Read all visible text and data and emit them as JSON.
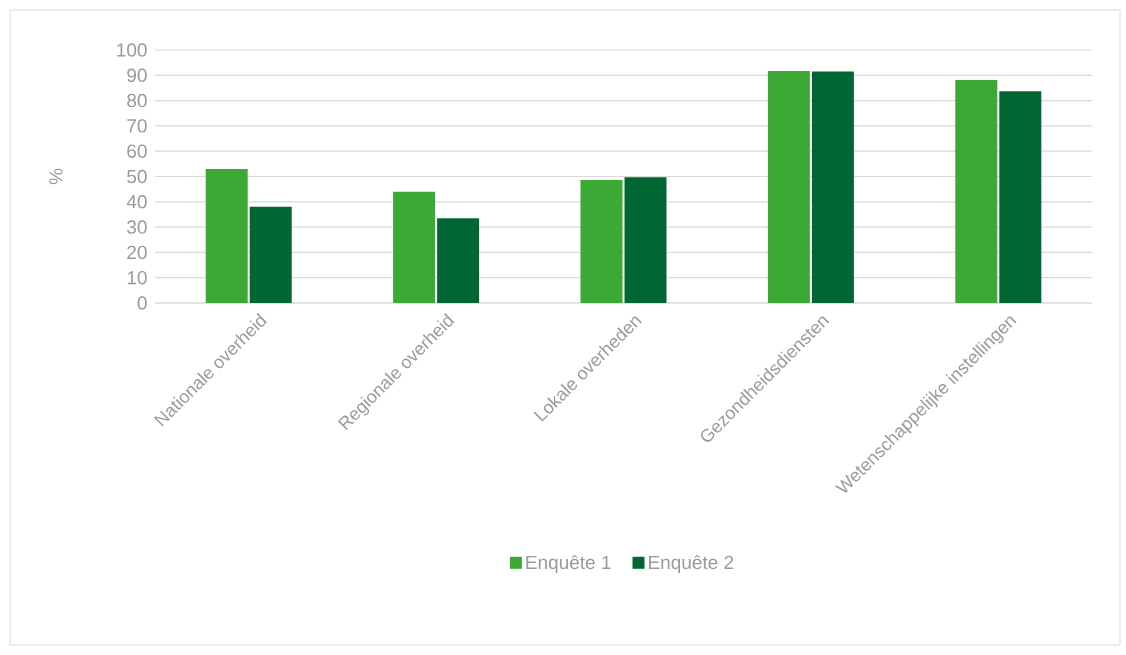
{
  "chart_data": {
    "type": "bar",
    "ylabel": "%",
    "categories": [
      "Nationale overheid",
      "Regionale overheid",
      "Lokale overheden",
      "Gezondheidsdiensten",
      "Wetenschappelijke instellingen"
    ],
    "series": [
      {
        "name": "Enquête 1",
        "color": "#3da935",
        "values": [
          53,
          44,
          48.6,
          91.7,
          88.1
        ]
      },
      {
        "name": "Enquête 2",
        "color": "#006633",
        "values": [
          38,
          33.5,
          49.7,
          91.5,
          83.7
        ]
      }
    ],
    "ylim": [
      0,
      100
    ],
    "yticks": [
      0,
      10,
      20,
      30,
      40,
      50,
      60,
      70,
      80,
      90,
      100
    ],
    "grid": "y",
    "legend": "bottom"
  }
}
